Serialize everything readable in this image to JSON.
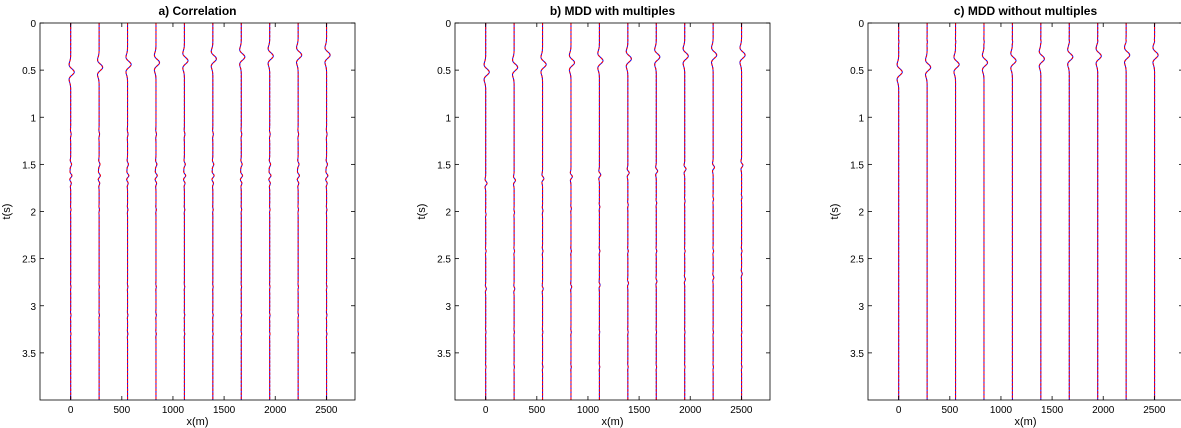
{
  "chart_data": [
    {
      "type": "line",
      "title": "a) Correlation",
      "xlabel": "x(m)",
      "ylabel": "t(s)",
      "xlim": [
        -300,
        2780
      ],
      "ylim": [
        0,
        4
      ],
      "y_reversed": true,
      "xticks": [
        0,
        500,
        1000,
        1500,
        2000,
        2500
      ],
      "yticks": [
        0,
        0.5,
        1,
        1.5,
        2,
        2.5,
        3,
        3.5
      ],
      "ytick_labels": [
        "0",
        "0.5",
        "1",
        "1.5",
        "2",
        "2.5",
        "3",
        "3.5"
      ],
      "trace_x": [
        0,
        278,
        556,
        834,
        1112,
        1390,
        1668,
        1946,
        2224,
        2502
      ],
      "series": [
        {
          "color": "#0000ff",
          "style": "solid"
        },
        {
          "color": "#ff0000",
          "style": "dashed"
        }
      ],
      "events": [
        {
          "t": [
            0.52,
            0.47,
            0.44,
            0.42,
            0.4,
            0.38,
            0.36,
            0.35,
            0.34,
            0.34
          ],
          "width": 2.8,
          "amp": 170,
          "blue_extend": true
        },
        {
          "t": [
            1.18,
            1.18,
            1.18,
            1.18,
            1.18,
            1.18,
            1.18,
            1.18,
            1.18,
            1.18
          ],
          "width": 1.6,
          "amp": 25
        },
        {
          "t": [
            1.5,
            1.5,
            1.5,
            1.5,
            1.5,
            1.5,
            1.5,
            1.5,
            1.5,
            1.5
          ],
          "width": 1.6,
          "amp": 45
        },
        {
          "t": [
            1.62,
            1.62,
            1.62,
            1.62,
            1.62,
            1.62,
            1.62,
            1.62,
            1.62,
            1.62
          ],
          "width": 1.5,
          "amp": 65
        },
        {
          "t": [
            1.7,
            1.7,
            1.7,
            1.7,
            1.7,
            1.7,
            1.7,
            1.7,
            1.7,
            1.7
          ],
          "width": 1.4,
          "amp": 35
        },
        {
          "t": [
            1.98,
            1.98,
            1.98,
            1.98,
            1.98,
            1.98,
            1.98,
            1.98,
            1.98,
            1.98
          ],
          "width": 1.2,
          "amp": 18
        },
        {
          "t": [
            2.8,
            2.8,
            2.8,
            2.8,
            2.8,
            2.8,
            2.8,
            2.8,
            2.8,
            2.8
          ],
          "width": 1.2,
          "amp": 15
        },
        {
          "t": [
            3.1,
            3.1,
            3.1,
            3.1,
            3.1,
            3.1,
            3.1,
            3.1,
            3.1,
            3.1
          ],
          "width": 1.2,
          "amp": 18
        },
        {
          "t": [
            3.3,
            3.3,
            3.3,
            3.3,
            3.3,
            3.3,
            3.3,
            3.3,
            3.3,
            3.3
          ],
          "width": 1.2,
          "amp": 15
        }
      ]
    },
    {
      "type": "line",
      "title": "b) MDD with multiples",
      "xlabel": "x(m)",
      "ylabel": "t(s)",
      "xlim": [
        -300,
        2780
      ],
      "ylim": [
        0,
        4
      ],
      "y_reversed": true,
      "xticks": [
        0,
        500,
        1000,
        1500,
        2000,
        2500
      ],
      "yticks": [
        0,
        0.5,
        1,
        1.5,
        2,
        2.5,
        3,
        3.5
      ],
      "ytick_labels": [
        "0",
        "0.5",
        "1",
        "1.5",
        "2",
        "2.5",
        "3",
        "3.5"
      ],
      "trace_x": [
        0,
        278,
        556,
        834,
        1112,
        1390,
        1668,
        1946,
        2224,
        2502
      ],
      "series": [
        {
          "color": "#0000ff",
          "style": "solid"
        },
        {
          "color": "#ff0000",
          "style": "dashed"
        }
      ],
      "events": [
        {
          "t": [
            0.52,
            0.47,
            0.44,
            0.42,
            0.4,
            0.38,
            0.36,
            0.35,
            0.34,
            0.34
          ],
          "width": 2.8,
          "amp": 170,
          "blue_extend": true
        },
        {
          "t": [
            1.7,
            1.67,
            1.65,
            1.63,
            1.61,
            1.59,
            1.57,
            1.55,
            1.53,
            1.51
          ],
          "width": 1.5,
          "amp": 70
        },
        {
          "t": [
            2.03,
            2.01,
            1.99,
            1.97,
            1.95,
            1.93,
            1.91,
            1.89,
            1.87,
            1.85
          ],
          "width": 1.2,
          "amp": 20
        },
        {
          "t": [
            2.42,
            2.42,
            2.42,
            2.42,
            2.42,
            2.42,
            2.42,
            2.42,
            2.42,
            2.42
          ],
          "width": 1.2,
          "amp": 22
        },
        {
          "t": [
            2.82,
            2.82,
            2.82,
            2.8,
            2.78,
            2.76,
            2.74,
            2.72,
            2.7,
            2.66
          ],
          "width": 1.3,
          "amp": 35
        },
        {
          "t": [
            3.28,
            3.28,
            3.28,
            3.28,
            3.28,
            3.28,
            3.28,
            3.28,
            3.28,
            3.28
          ],
          "width": 1.2,
          "amp": 15
        },
        {
          "t": [
            3.65,
            3.65,
            3.65,
            3.65,
            3.65,
            3.65,
            3.65,
            3.65,
            3.65,
            3.65
          ],
          "width": 1.2,
          "amp": 15
        }
      ]
    },
    {
      "type": "line",
      "title": "c) MDD without multiples",
      "xlabel": "x(m)",
      "ylabel": "t(s)",
      "xlim": [
        -300,
        2780
      ],
      "ylim": [
        0,
        4
      ],
      "y_reversed": true,
      "xticks": [
        0,
        500,
        1000,
        1500,
        2000,
        2500
      ],
      "yticks": [
        0,
        0.5,
        1,
        1.5,
        2,
        2.5,
        3,
        3.5
      ],
      "ytick_labels": [
        "0",
        "0.5",
        "1",
        "1.5",
        "2",
        "2.5",
        "3",
        "3.5"
      ],
      "trace_x": [
        0,
        278,
        556,
        834,
        1112,
        1390,
        1668,
        1946,
        2224,
        2502
      ],
      "series": [
        {
          "color": "#0000ff",
          "style": "solid"
        },
        {
          "color": "#ff0000",
          "style": "dashed"
        }
      ],
      "events": [
        {
          "t": [
            0.52,
            0.47,
            0.44,
            0.42,
            0.4,
            0.38,
            0.36,
            0.35,
            0.34,
            0.34
          ],
          "width": 2.8,
          "amp": 170,
          "blue_extend": true
        },
        {
          "t": [
            0.2,
            0.2,
            0.2,
            0.2,
            0.2,
            0.2,
            0.2,
            0.2,
            0.2,
            0.2
          ],
          "width": 1.2,
          "amp": 12
        }
      ]
    }
  ]
}
